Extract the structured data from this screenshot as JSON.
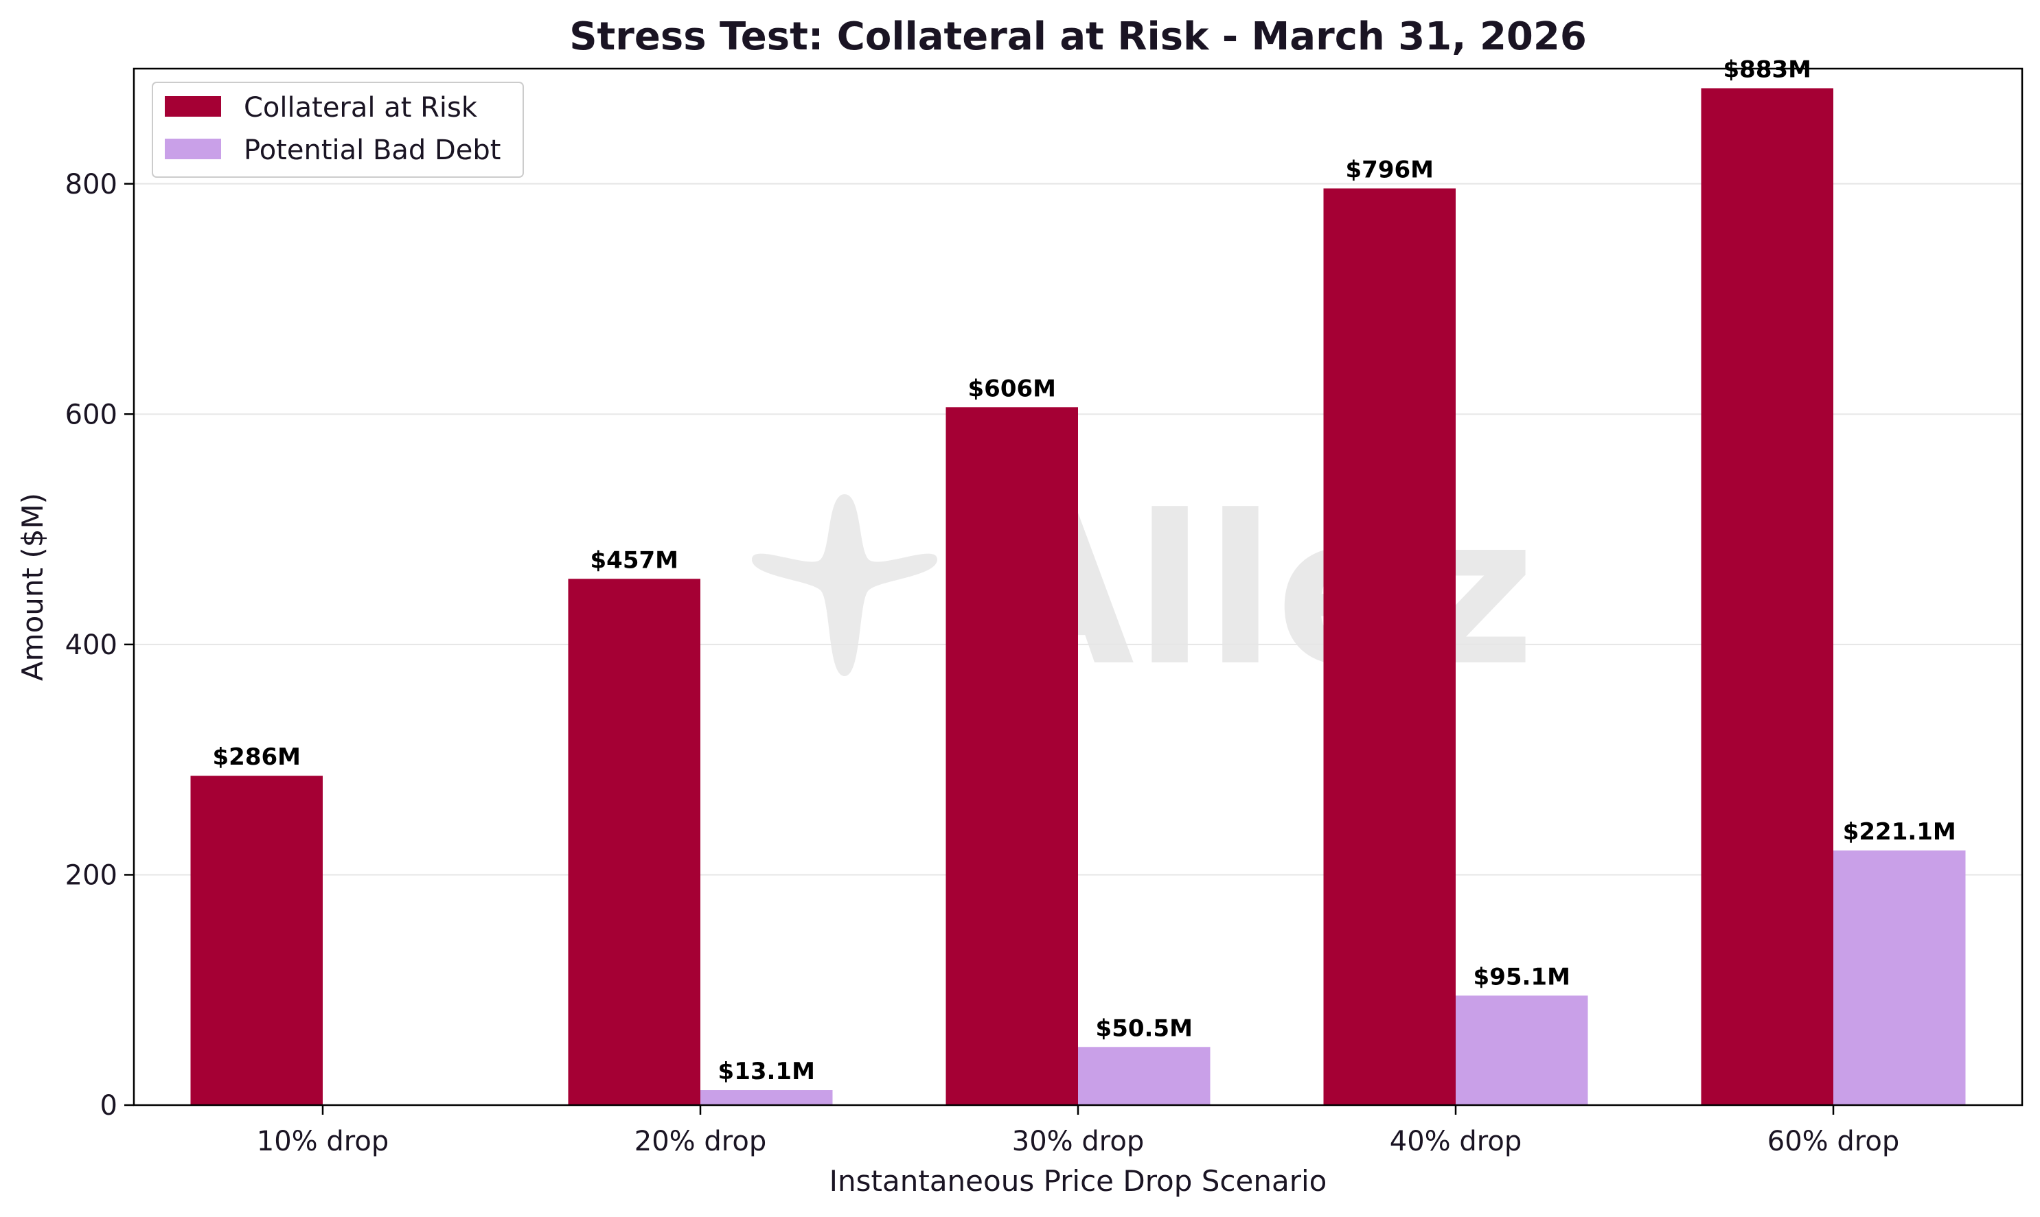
{
  "chart_data": {
    "type": "bar",
    "title": "Stress Test: Collateral at Risk - March 31, 2026",
    "xlabel": "Instantaneous Price Drop Scenario",
    "ylabel": "Amount ($M)",
    "categories": [
      "10% drop",
      "20% drop",
      "30% drop",
      "40% drop",
      "60% drop"
    ],
    "ylim": [
      0,
      900
    ],
    "yticks": [
      0,
      200,
      400,
      600,
      800
    ],
    "grid": "horizontal",
    "legend_position": "top-left",
    "series": [
      {
        "name": "Collateral at Risk",
        "color": "#a50034",
        "values": [
          286,
          457,
          606,
          796,
          883
        ],
        "labels": [
          "$286M",
          "$457M",
          "$606M",
          "$796M",
          "$883M"
        ]
      },
      {
        "name": "Potential Bad Debt",
        "color": "#c9a0e8",
        "values": [
          0,
          13.1,
          50.5,
          95.1,
          221.1
        ],
        "labels": [
          "",
          "$13.1M",
          "$50.5M",
          "$95.1M",
          "$221.1M"
        ]
      }
    ]
  },
  "watermark": {
    "text": "Allez",
    "icon": "sparkle-icon",
    "color": "#d8d8d8"
  }
}
